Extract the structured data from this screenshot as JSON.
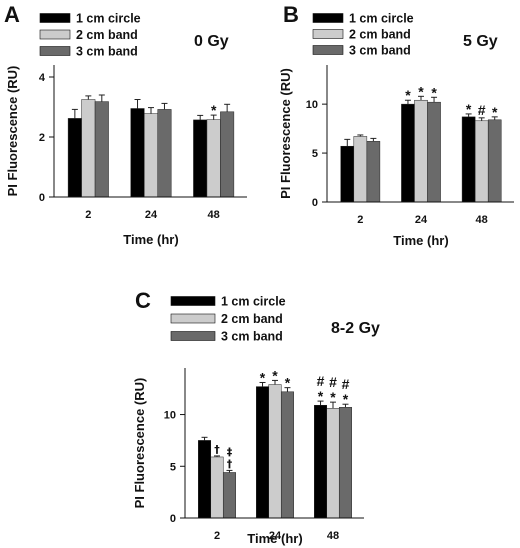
{
  "colors": {
    "series_fill": [
      "#000000",
      "#cccccc",
      "#6a6a6a"
    ],
    "axis": "#111111"
  },
  "legend_labels": [
    "1 cm circle",
    "2 cm band",
    "3 cm band"
  ],
  "chart_data": [
    {
      "type": "bar",
      "panel": "A",
      "title": "0 Gy",
      "xlabel": "Time (hr)",
      "ylabel": "PI Fluorescence (RU)",
      "categories": [
        "2",
        "24",
        "48"
      ],
      "ylim": [
        0,
        4.4
      ],
      "yticks": [
        0,
        2,
        4
      ],
      "series": [
        {
          "name": "1 cm circle",
          "values": [
            2.62,
            2.95,
            2.57
          ],
          "errors": [
            0.3,
            0.3,
            0.15
          ]
        },
        {
          "name": "2 cm band",
          "values": [
            3.25,
            2.78,
            2.58
          ],
          "errors": [
            0.12,
            0.2,
            0.15
          ]
        },
        {
          "name": "3 cm band",
          "values": [
            3.18,
            2.92,
            2.84
          ],
          "errors": [
            0.22,
            0.2,
            0.25
          ]
        }
      ],
      "annotations": [
        {
          "category": "48",
          "series": 1,
          "text": "*"
        }
      ]
    },
    {
      "type": "bar",
      "panel": "B",
      "title": "5 Gy",
      "xlabel": "Time (hr)",
      "ylabel": "PI Fluorescence (RU)",
      "categories": [
        "2",
        "24",
        "48"
      ],
      "ylim": [
        0,
        14
      ],
      "yticks": [
        0,
        5,
        10
      ],
      "series": [
        {
          "name": "1 cm circle",
          "values": [
            5.7,
            10.0,
            8.7
          ],
          "errors": [
            0.7,
            0.4,
            0.3
          ]
        },
        {
          "name": "2 cm band",
          "values": [
            6.7,
            10.4,
            8.3
          ],
          "errors": [
            0.15,
            0.4,
            0.3
          ]
        },
        {
          "name": "3 cm band",
          "values": [
            6.2,
            10.2,
            8.4
          ],
          "errors": [
            0.3,
            0.5,
            0.3
          ]
        }
      ],
      "annotations": [
        {
          "category": "24",
          "series": 0,
          "text": "*"
        },
        {
          "category": "24",
          "series": 1,
          "text": "*"
        },
        {
          "category": "24",
          "series": 2,
          "text": "*"
        },
        {
          "category": "48",
          "series": 0,
          "text": "*"
        },
        {
          "category": "48",
          "series": 1,
          "text": "#"
        },
        {
          "category": "48",
          "series": 2,
          "text": "*"
        }
      ]
    },
    {
      "type": "bar",
      "panel": "C",
      "title": "8-2 Gy",
      "xlabel": "Time (hr)",
      "ylabel": "PI Fluorescence (RU)",
      "categories": [
        "2",
        "24",
        "48"
      ],
      "ylim": [
        0,
        14.5
      ],
      "yticks": [
        0,
        5,
        10
      ],
      "series": [
        {
          "name": "1 cm circle",
          "values": [
            7.5,
            12.7,
            10.9
          ],
          "errors": [
            0.3,
            0.4,
            0.4
          ]
        },
        {
          "name": "2 cm band",
          "values": [
            5.9,
            12.9,
            10.6
          ],
          "errors": [
            0.1,
            0.4,
            0.6
          ]
        },
        {
          "name": "3 cm band",
          "values": [
            4.4,
            12.2,
            10.7
          ],
          "errors": [
            0.2,
            0.4,
            0.3
          ]
        }
      ],
      "annotations": [
        {
          "category": "2",
          "series": 1,
          "text": "†"
        },
        {
          "category": "2",
          "series": 2,
          "text": "†"
        },
        {
          "category": "2",
          "series": 2,
          "text": "‡"
        },
        {
          "category": "24",
          "series": 0,
          "text": "*"
        },
        {
          "category": "24",
          "series": 1,
          "text": "*"
        },
        {
          "category": "24",
          "series": 2,
          "text": "*"
        },
        {
          "category": "48",
          "series": 0,
          "text": "*"
        },
        {
          "category": "48",
          "series": 0,
          "text": "#"
        },
        {
          "category": "48",
          "series": 1,
          "text": "*"
        },
        {
          "category": "48",
          "series": 1,
          "text": "#"
        },
        {
          "category": "48",
          "series": 2,
          "text": "*"
        },
        {
          "category": "48",
          "series": 2,
          "text": "#"
        }
      ]
    }
  ]
}
